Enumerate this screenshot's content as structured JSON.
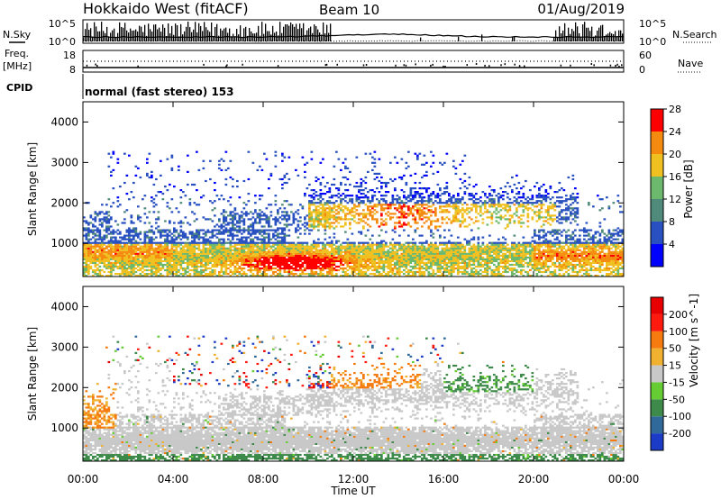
{
  "header": {
    "station": "Hokkaido West (fitACF)",
    "beam": "Beam 10",
    "date": "01/Aug/2019"
  },
  "noise_panel": {
    "left_label": "N.Sky",
    "right_label": "N.Search",
    "left_ticks": [
      "10^5",
      "10^0"
    ],
    "right_ticks": [
      "10^5",
      "10^0"
    ]
  },
  "freq_panel": {
    "left_label_line1": "Freq.",
    "left_label_line2": "[MHz]",
    "right_label": "Nave",
    "left_ticks": [
      "18",
      "8"
    ],
    "right_ticks": [
      "60",
      "0"
    ]
  },
  "cpid": {
    "label": "CPID",
    "text": "normal (fast stereo) 153"
  },
  "chart_data": [
    {
      "type": "heatmap",
      "name": "power",
      "ylabel": "Slant Range [km]",
      "ylim": [
        180,
        4500
      ],
      "y_ticks": [
        "1000",
        "2000",
        "3000",
        "4000"
      ],
      "xlim": [
        0,
        24
      ],
      "colorbar_label": "Power [dB]",
      "colorbar_ticks": [
        "4",
        "8",
        "12",
        "16",
        "20",
        "24",
        "28"
      ],
      "colors": [
        "#0000ff",
        "#2850c0",
        "#4f8a7a",
        "#6cb86c",
        "#f0c020",
        "#f58a10",
        "#ff0000"
      ]
    },
    {
      "type": "heatmap",
      "name": "velocity",
      "ylabel": "Slant Range [km]",
      "ylim": [
        180,
        4500
      ],
      "y_ticks": [
        "1000",
        "2000",
        "3000",
        "4000"
      ],
      "xlim": [
        0,
        24
      ],
      "colorbar_label": "Velocity [m s^-1]",
      "colorbar_ticks": [
        "200",
        "100",
        "50",
        "15",
        "-15",
        "-50",
        "-100",
        "-200"
      ],
      "colors": [
        "#1c3cc8",
        "#2f6a9a",
        "#3d8a4a",
        "#66cc33",
        "#c8c8c8",
        "#f0b030",
        "#f57a10",
        "#ff1a10",
        "#e80000"
      ]
    }
  ],
  "x_axis": {
    "label": "Time UT",
    "ticks": [
      "00:00",
      "04:00",
      "08:00",
      "12:00",
      "16:00",
      "20:00",
      "00:00"
    ]
  }
}
